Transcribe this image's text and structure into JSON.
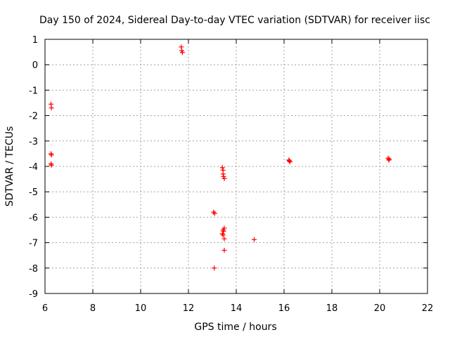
{
  "chart_data": {
    "type": "scatter",
    "title": "Day 150 of 2024, Sidereal Day-to-day VTEC variation (SDTVAR) for receiver iisc",
    "xlabel": "GPS time / hours",
    "ylabel": "SDTVAR / TECUs",
    "xlim": [
      6,
      22
    ],
    "ylim": [
      -9,
      1
    ],
    "xticks": [
      "6",
      "8",
      "10",
      "12",
      "14",
      "16",
      "18",
      "20",
      "22"
    ],
    "yticks": [
      "1",
      "0",
      "-1",
      "-2",
      "-3",
      "-4",
      "-5",
      "-6",
      "-7",
      "-8",
      "-9"
    ],
    "grid": true,
    "marker": "+",
    "series": [
      {
        "name": "SDTVAR",
        "color": "#ff0000",
        "points": [
          [
            6.25,
            -1.55
          ],
          [
            6.27,
            -1.7
          ],
          [
            6.25,
            -3.5
          ],
          [
            6.27,
            -3.55
          ],
          [
            6.25,
            -3.9
          ],
          [
            6.27,
            -3.95
          ],
          [
            11.7,
            0.7
          ],
          [
            11.72,
            0.55
          ],
          [
            11.75,
            0.48
          ],
          [
            13.05,
            -5.8
          ],
          [
            13.1,
            -5.85
          ],
          [
            13.08,
            -8.0
          ],
          [
            13.42,
            -4.05
          ],
          [
            13.45,
            -4.15
          ],
          [
            13.45,
            -4.3
          ],
          [
            13.47,
            -4.4
          ],
          [
            13.5,
            -4.48
          ],
          [
            13.45,
            -6.5
          ],
          [
            13.47,
            -6.55
          ],
          [
            13.42,
            -6.65
          ],
          [
            13.45,
            -6.7
          ],
          [
            13.5,
            -6.43
          ],
          [
            13.5,
            -6.85
          ],
          [
            13.5,
            -7.3
          ],
          [
            14.75,
            -6.88
          ],
          [
            16.2,
            -3.75
          ],
          [
            16.22,
            -3.78
          ],
          [
            16.25,
            -3.82
          ],
          [
            20.35,
            -3.68
          ],
          [
            20.4,
            -3.72
          ],
          [
            20.38,
            -3.75
          ]
        ]
      }
    ]
  }
}
